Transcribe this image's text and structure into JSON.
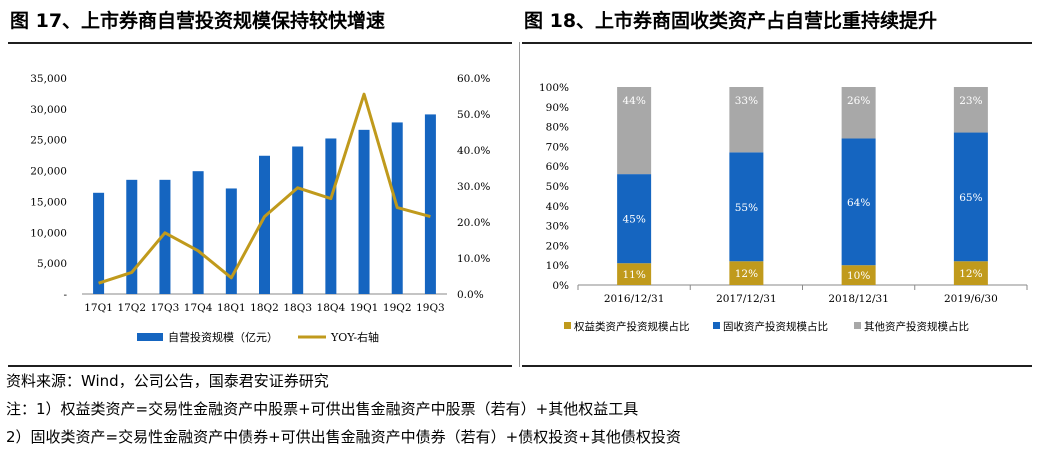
{
  "titles": {
    "left": "图 17、上市券商自营投资规模保持较快增速",
    "right": "图 18、上市券商固收类资产占自营比重持续提升"
  },
  "notes": {
    "source": "资料来源：Wind，公司公告，国泰君安证券研究",
    "note1": "注：1）权益类资产=交易性金融资产中股票+可供出售金融资产中股票（若有）+其他权益工具",
    "note2": "2）固收类资产=交易性金融资产中债券+可供出售金融资产中债券（若有）+债权投资+其他债权投资"
  },
  "colors": {
    "blue": "#1565c0",
    "gold": "#c09a1c",
    "gray": "#a8a8a8"
  },
  "chart_data": [
    {
      "type": "bar",
      "title": "图 17、上市券商自营投资规模保持较快增速",
      "categories": [
        "17Q1",
        "17Q2",
        "17Q3",
        "17Q4",
        "18Q1",
        "18Q2",
        "18Q3",
        "18Q4",
        "19Q1",
        "19Q2",
        "19Q3"
      ],
      "series": [
        {
          "name": "自营投资规模（亿元）",
          "type": "bar",
          "axis": "left",
          "values": [
            16400,
            18500,
            18500,
            19900,
            17100,
            22400,
            23900,
            25200,
            26600,
            27800,
            29100
          ]
        },
        {
          "name": "YOY-右轴",
          "type": "line",
          "axis": "right",
          "values": [
            3.0,
            6.0,
            17.0,
            12.0,
            4.5,
            21.5,
            29.5,
            26.5,
            55.5,
            24.0,
            21.5
          ]
        }
      ],
      "y_left": {
        "min": 0,
        "max": 35000,
        "ticks": [
          "-",
          "5,000",
          "10,000",
          "15,000",
          "20,000",
          "25,000",
          "30,000",
          "35,000"
        ]
      },
      "y_right": {
        "min": 0,
        "max": 60,
        "ticks": [
          "0.0%",
          "10.0%",
          "20.0%",
          "30.0%",
          "40.0%",
          "50.0%",
          "60.0%"
        ]
      },
      "legend": [
        "自营投资规模（亿元）",
        "YOY-右轴"
      ],
      "legend_position": "bottom",
      "grid": false
    },
    {
      "type": "bar",
      "stacked": true,
      "title": "图 18、上市券商固收类资产占自营比重持续提升",
      "categories": [
        "2016/12/31",
        "2017/12/31",
        "2018/12/31",
        "2019/6/30"
      ],
      "series": [
        {
          "name": "权益类资产投资规模占比",
          "values": [
            11,
            12,
            10,
            12
          ],
          "labels": [
            "11%",
            "12%",
            "10%",
            "12%"
          ]
        },
        {
          "name": "固收资产投资规模占比",
          "values": [
            45,
            55,
            64,
            65
          ],
          "labels": [
            "45%",
            "55%",
            "64%",
            "65%"
          ]
        },
        {
          "name": "其他资产投资规模占比",
          "values": [
            44,
            33,
            26,
            23
          ],
          "labels": [
            "44%",
            "33%",
            "26%",
            "23%"
          ]
        }
      ],
      "y": {
        "min": 0,
        "max": 100,
        "ticks": [
          "0%",
          "10%",
          "20%",
          "30%",
          "40%",
          "50%",
          "60%",
          "70%",
          "80%",
          "90%",
          "100%"
        ]
      },
      "legend": [
        "权益类资产投资规模占比",
        "固收资产投资规模占比",
        "其他资产投资规模占比"
      ],
      "legend_position": "bottom",
      "grid": false
    }
  ]
}
